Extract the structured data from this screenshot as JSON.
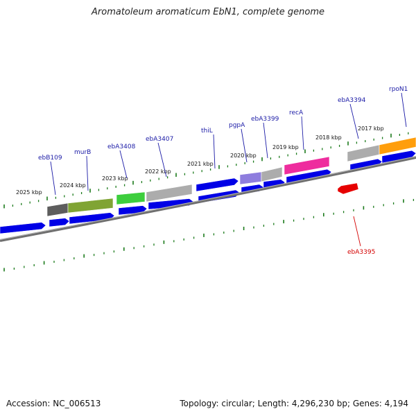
{
  "title": "Aromatoleum aromaticum EbN1, complete genome",
  "accession": "Accession: NC_006513",
  "summary": "Topology: circular; Length: 4,296,230 bp; Genes: 4,194",
  "colors": {
    "backbone": "#7a7a7a",
    "forward_gene": "#0000e6",
    "reverse_gene": "#e60000",
    "tick": "#1a7a1a",
    "label_line_blue": "#1a1aa6",
    "label_line_red": "#d40000"
  },
  "tick_labels": [
    "2025 kbp",
    "2024 kbp",
    "2023 kbp",
    "2022 kbp",
    "2021 kbp",
    "2020 kbp",
    "2019 kbp",
    "2018 kbp",
    "2017 kbp"
  ],
  "gene_labels": [
    {
      "text": "ebB109",
      "strand": "forward"
    },
    {
      "text": "murB",
      "strand": "forward"
    },
    {
      "text": "ebA3408",
      "strand": "forward"
    },
    {
      "text": "ebA3407",
      "strand": "forward"
    },
    {
      "text": "thiL",
      "strand": "forward"
    },
    {
      "text": "pgpA",
      "strand": "forward"
    },
    {
      "text": "ebA3399",
      "strand": "forward"
    },
    {
      "text": "recA",
      "strand": "forward"
    },
    {
      "text": "ebA3394",
      "strand": "forward"
    },
    {
      "text": "rpoN1",
      "strand": "forward"
    },
    {
      "text": "ebA3395",
      "strand": "reverse"
    }
  ],
  "feature_colors": [
    "#555555",
    "#7aa02a",
    "#33cc33",
    "#a8a8a8",
    "#8877dd",
    "#a8a8a8",
    "#ee2299",
    "#a8a8a8",
    "#ff9900"
  ]
}
